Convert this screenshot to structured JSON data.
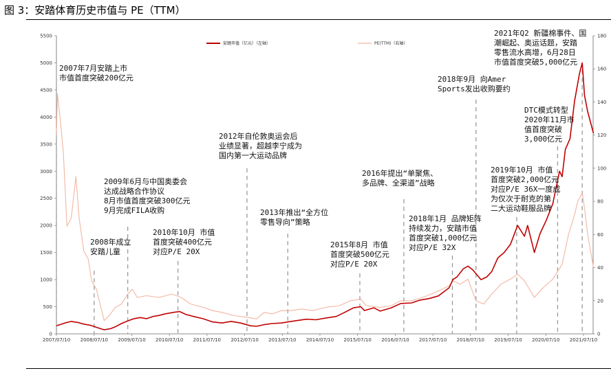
{
  "figure_title": "图 3：安踏体育历史市值与 PE（TTM）",
  "chart_data": {
    "type": "line",
    "x_range": [
      "2007-07-10",
      "2021-07-10"
    ],
    "x_ticks": [
      "2007/07/10",
      "2008/07/10",
      "2009/07/10",
      "2010/07/10",
      "2011/07/10",
      "2012/07/10",
      "2013/07/10",
      "2014/07/10",
      "2015/07/10",
      "2016/07/10",
      "2017/07/10",
      "2018/07/10",
      "2019/07/10",
      "2020/07/10",
      "2021/07/10"
    ],
    "y_left": {
      "range": [
        0,
        5500
      ],
      "ticks": [
        0,
        500,
        1000,
        1500,
        2000,
        2500,
        3000,
        3500,
        4000,
        4500,
        5000,
        5500
      ]
    },
    "y_right": {
      "range": [
        0,
        180
      ],
      "ticks": [
        0,
        20,
        40,
        60,
        80,
        100,
        120,
        140,
        160,
        180
      ]
    },
    "grid": false,
    "legend_position": "top-center",
    "series": [
      {
        "name": "安踏市值（亿元）（左轴）",
        "axis": "left",
        "color": "#c00000",
        "points": [
          [
            "2007-07-10",
            150
          ],
          [
            "2007-10-01",
            200
          ],
          [
            "2007-12-01",
            230
          ],
          [
            "2008-02-01",
            210
          ],
          [
            "2008-04-01",
            180
          ],
          [
            "2008-06-01",
            160
          ],
          [
            "2008-08-01",
            120
          ],
          [
            "2008-10-15",
            75
          ],
          [
            "2008-12-15",
            95
          ],
          [
            "2009-02-01",
            130
          ],
          [
            "2009-04-01",
            190
          ],
          [
            "2009-06-01",
            240
          ],
          [
            "2009-08-01",
            280
          ],
          [
            "2009-10-01",
            300
          ],
          [
            "2009-12-01",
            280
          ],
          [
            "2010-02-01",
            320
          ],
          [
            "2010-04-01",
            340
          ],
          [
            "2010-06-01",
            370
          ],
          [
            "2010-09-01",
            400
          ],
          [
            "2010-10-20",
            410
          ],
          [
            "2010-12-15",
            360
          ],
          [
            "2011-03-01",
            320
          ],
          [
            "2011-06-01",
            280
          ],
          [
            "2011-09-01",
            220
          ],
          [
            "2011-12-01",
            200
          ],
          [
            "2012-03-01",
            230
          ],
          [
            "2012-06-01",
            200
          ],
          [
            "2012-09-01",
            150
          ],
          [
            "2012-11-01",
            140
          ],
          [
            "2013-01-15",
            170
          ],
          [
            "2013-04-01",
            190
          ],
          [
            "2013-07-01",
            200
          ],
          [
            "2013-10-01",
            230
          ],
          [
            "2013-12-15",
            250
          ],
          [
            "2014-03-01",
            270
          ],
          [
            "2014-06-01",
            260
          ],
          [
            "2014-09-01",
            290
          ],
          [
            "2014-12-15",
            320
          ],
          [
            "2015-03-01",
            390
          ],
          [
            "2015-06-01",
            480
          ],
          [
            "2015-08-10",
            500
          ],
          [
            "2015-09-15",
            430
          ],
          [
            "2015-12-15",
            480
          ],
          [
            "2016-02-15",
            420
          ],
          [
            "2016-06-01",
            480
          ],
          [
            "2016-09-01",
            560
          ],
          [
            "2016-12-15",
            570
          ],
          [
            "2017-03-01",
            620
          ],
          [
            "2017-06-01",
            650
          ],
          [
            "2017-09-01",
            700
          ],
          [
            "2017-12-15",
            850
          ],
          [
            "2018-01-20",
            1000
          ],
          [
            "2018-03-01",
            1050
          ],
          [
            "2018-05-01",
            1200
          ],
          [
            "2018-06-15",
            1250
          ],
          [
            "2018-08-01",
            1180
          ],
          [
            "2018-10-20",
            1000
          ],
          [
            "2018-12-15",
            1050
          ],
          [
            "2019-02-01",
            1150
          ],
          [
            "2019-04-01",
            1400
          ],
          [
            "2019-06-01",
            1500
          ],
          [
            "2019-08-01",
            1650
          ],
          [
            "2019-10-10",
            2000
          ],
          [
            "2019-12-15",
            1800
          ],
          [
            "2020-01-15",
            2000
          ],
          [
            "2020-03-20",
            1500
          ],
          [
            "2020-05-15",
            1850
          ],
          [
            "2020-07-15",
            2100
          ],
          [
            "2020-09-15",
            2400
          ],
          [
            "2020-11-20",
            3000
          ],
          [
            "2020-12-15",
            2900
          ],
          [
            "2021-01-15",
            3400
          ],
          [
            "2021-03-01",
            3600
          ],
          [
            "2021-04-15",
            4300
          ],
          [
            "2021-06-01",
            4800
          ],
          [
            "2021-06-28",
            5000
          ],
          [
            "2021-07-20",
            4400
          ],
          [
            "2021-08-20",
            4100
          ],
          [
            "2021-10-15",
            3700
          ]
        ]
      },
      {
        "name": "PE(TTM)（右轴）",
        "axis": "right",
        "color": "#f2b5a0",
        "points": [
          [
            "2007-07-10",
            120
          ],
          [
            "2007-07-20",
            145
          ],
          [
            "2007-08-15",
            130
          ],
          [
            "2007-09-15",
            110
          ],
          [
            "2007-10-20",
            65
          ],
          [
            "2007-12-01",
            70
          ],
          [
            "2008-01-15",
            95
          ],
          [
            "2008-02-15",
            70
          ],
          [
            "2008-04-01",
            50
          ],
          [
            "2008-05-15",
            45
          ],
          [
            "2008-06-15",
            32
          ],
          [
            "2008-08-01",
            27
          ],
          [
            "2008-10-15",
            8
          ],
          [
            "2008-12-15",
            12
          ],
          [
            "2009-02-01",
            16
          ],
          [
            "2009-04-01",
            18
          ],
          [
            "2009-06-01",
            24
          ],
          [
            "2009-07-15",
            27
          ],
          [
            "2009-09-01",
            22
          ],
          [
            "2009-12-01",
            23
          ],
          [
            "2010-04-01",
            22
          ],
          [
            "2010-08-01",
            24
          ],
          [
            "2010-11-01",
            22
          ],
          [
            "2011-02-01",
            18
          ],
          [
            "2011-06-01",
            16
          ],
          [
            "2011-09-01",
            14
          ],
          [
            "2011-12-01",
            13
          ],
          [
            "2012-04-01",
            11
          ],
          [
            "2012-08-01",
            10
          ],
          [
            "2012-11-01",
            9
          ],
          [
            "2013-01-15",
            13
          ],
          [
            "2013-04-01",
            12
          ],
          [
            "2013-07-01",
            14
          ],
          [
            "2013-10-01",
            14
          ],
          [
            "2014-01-15",
            15
          ],
          [
            "2014-05-01",
            14
          ],
          [
            "2014-09-01",
            16
          ],
          [
            "2015-01-15",
            17
          ],
          [
            "2015-05-01",
            20
          ],
          [
            "2015-08-10",
            21
          ],
          [
            "2015-10-01",
            17
          ],
          [
            "2016-02-15",
            16
          ],
          [
            "2016-06-01",
            17
          ],
          [
            "2016-09-01",
            20
          ],
          [
            "2016-12-15",
            20
          ],
          [
            "2017-04-01",
            22
          ],
          [
            "2017-08-01",
            25
          ],
          [
            "2017-12-15",
            29
          ],
          [
            "2018-01-20",
            32
          ],
          [
            "2018-04-01",
            30
          ],
          [
            "2018-06-15",
            33
          ],
          [
            "2018-09-01",
            20
          ],
          [
            "2018-11-15",
            18
          ],
          [
            "2019-02-01",
            24
          ],
          [
            "2019-05-01",
            30
          ],
          [
            "2019-08-01",
            33
          ],
          [
            "2019-10-10",
            36
          ],
          [
            "2019-12-15",
            32
          ],
          [
            "2020-03-20",
            22
          ],
          [
            "2020-06-15",
            28
          ],
          [
            "2020-09-15",
            33
          ],
          [
            "2020-12-15",
            42
          ],
          [
            "2021-02-15",
            60
          ],
          [
            "2021-04-15",
            72
          ],
          [
            "2021-05-15",
            80
          ],
          [
            "2021-06-28",
            85
          ],
          [
            "2021-07-20",
            76
          ],
          [
            "2021-08-20",
            60
          ],
          [
            "2021-10-15",
            40
          ]
        ]
      }
    ],
    "annotations": [
      {
        "date": "2007-07-10",
        "lines": [
          "2007年7月安踏上市",
          "市值首度突破200亿元"
        ]
      },
      {
        "date": "2008-07-10",
        "lines": [
          "2008年成立",
          "安踏儿童"
        ]
      },
      {
        "date": "2009-06-01",
        "lines": [
          "2009年6月与中国奥委会",
          "达成战略合作协议",
          "8月市值首度突破300亿元",
          "9月完成FILA收购"
        ]
      },
      {
        "date": "2010-10-01",
        "lines": [
          "2010年10月 市值",
          "首度突破400亿元",
          "对应P/E 20X"
        ]
      },
      {
        "date": "2012-08-01",
        "lines": [
          "2012年自伦敦奥运会后",
          "业绩显著，超越李宁成为",
          "国内第一大运动品牌"
        ]
      },
      {
        "date": "2013-09-01",
        "lines": [
          "2013年推出“全方位",
          "零售导向”策略"
        ]
      },
      {
        "date": "2015-08-01",
        "lines": [
          "2015年8月 市值",
          "首度突破500亿元",
          "对应P/E 20X"
        ]
      },
      {
        "date": "2016-10-01",
        "lines": [
          "2016年提出“单聚焦、",
          "多品牌、全渠道”战略"
        ]
      },
      {
        "date": "2018-01-15",
        "lines": [
          "2018年1月 品牌矩阵",
          "持续发力，安踏市值",
          "首度突破1,000亿元",
          "对应P/E 32X"
        ]
      },
      {
        "date": "2018-09-01",
        "lines": [
          "2018年9月 向Amer",
          "Sports发出收购要约"
        ]
      },
      {
        "date": "2019-10-01",
        "lines": [
          "2019年10月 市值",
          "首度突破2,000亿元",
          "对应P/E 36X一度成",
          "为仅次于耐克的第",
          "二大运动鞋服品牌"
        ]
      },
      {
        "date": "2020-11-01",
        "lines": [
          "DTC模式转型",
          "2020年11月市",
          "值首度突破",
          "3,000亿元"
        ]
      },
      {
        "date": "2021-06-28",
        "lines": [
          "2021年Q2 新疆棉事件、国",
          "潮崛起、奥运话题，安踏",
          "零售流水高增，6月28日",
          "市值首度突破5,000亿元"
        ]
      }
    ]
  }
}
